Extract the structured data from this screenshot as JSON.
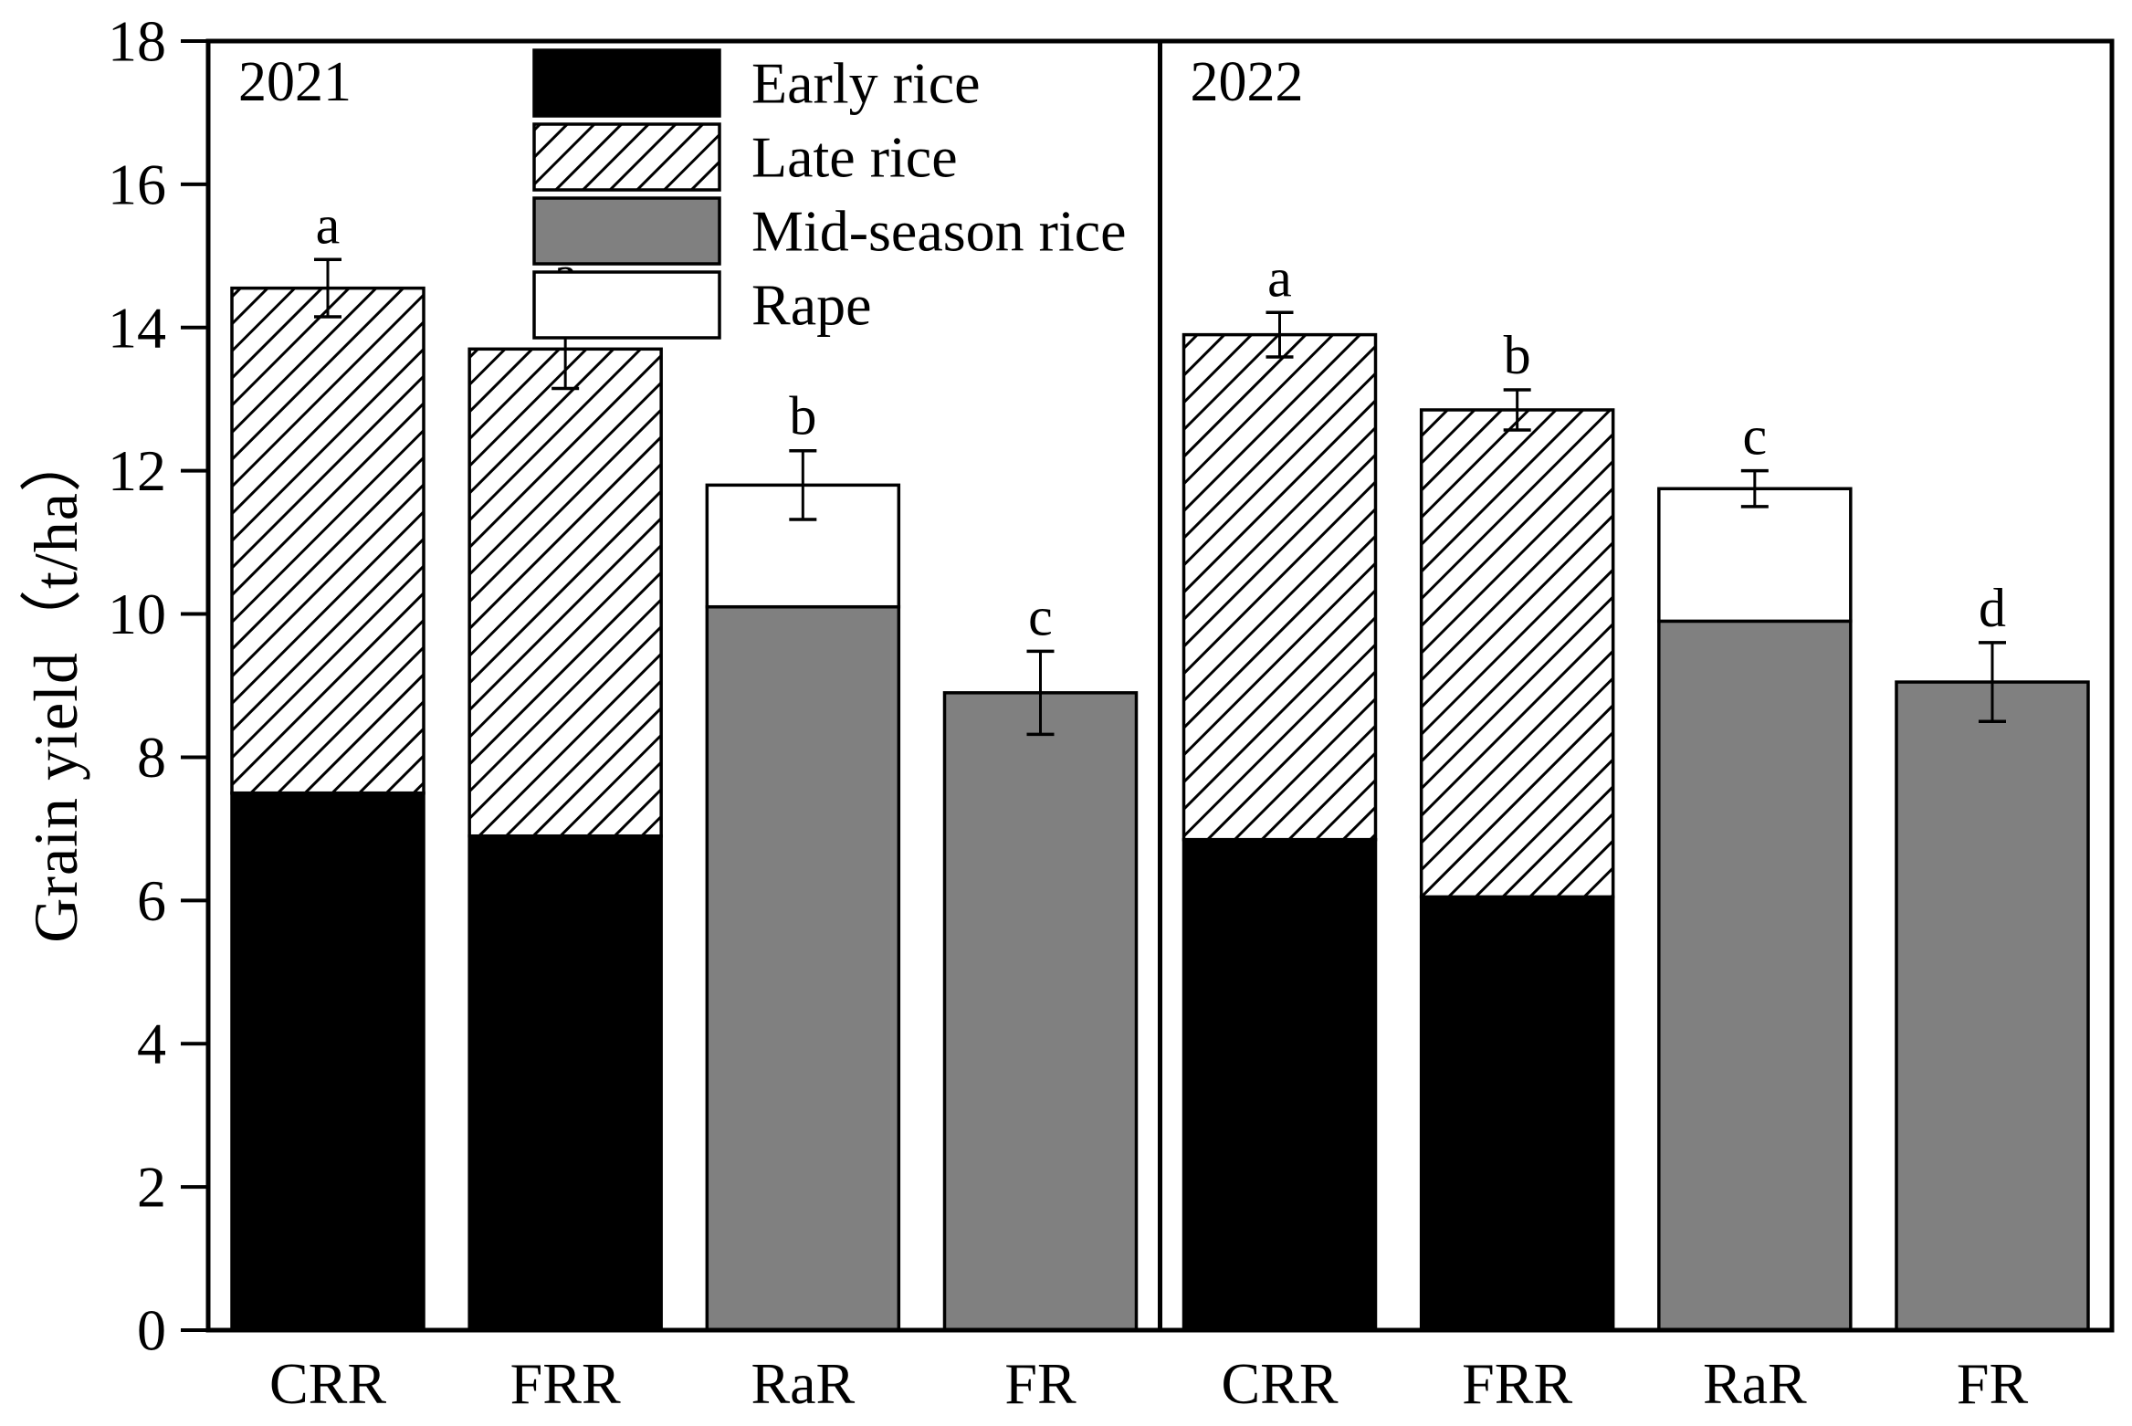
{
  "chart_data": {
    "type": "bar",
    "stacked": true,
    "title": "",
    "xlabel": "",
    "ylabel": "Grain yield（t/ha）",
    "ylim": [
      0,
      18
    ],
    "yticks": [
      0,
      2,
      4,
      6,
      8,
      10,
      12,
      14,
      16,
      18
    ],
    "grid": false,
    "legend_position": "top-center",
    "categories": [
      "CRR",
      "FRR",
      "RaR",
      "FR"
    ],
    "series_styles": [
      {
        "name": "Early rice",
        "fill": "black"
      },
      {
        "name": "Late rice",
        "fill": "hatch"
      },
      {
        "name": "Mid-season rice",
        "fill": "gray"
      },
      {
        "name": "Rape",
        "fill": "white"
      }
    ],
    "colors": {
      "black": "#000000",
      "gray": "#808080",
      "white": "#ffffff",
      "hatch_lines": "#000000",
      "axis": "#000000",
      "background": "#ffffff"
    },
    "panels": [
      {
        "year": "2021",
        "bars": [
          {
            "category": "CRR",
            "segments": [
              {
                "series": "Early rice",
                "value": 7.5
              },
              {
                "series": "Late rice",
                "value": 7.05
              }
            ],
            "total": 14.55,
            "error": 0.4,
            "letter": "a"
          },
          {
            "category": "FRR",
            "segments": [
              {
                "series": "Early rice",
                "value": 6.9
              },
              {
                "series": "Late rice",
                "value": 6.8
              }
            ],
            "total": 13.7,
            "error": 0.55,
            "letter": "a"
          },
          {
            "category": "RaR",
            "segments": [
              {
                "series": "Mid-season rice",
                "value": 10.1
              },
              {
                "series": "Rape",
                "value": 1.7
              }
            ],
            "total": 11.8,
            "error": 0.48,
            "letter": "b"
          },
          {
            "category": "FR",
            "segments": [
              {
                "series": "Mid-season rice",
                "value": 8.9
              }
            ],
            "total": 8.9,
            "error": 0.58,
            "letter": "c"
          }
        ]
      },
      {
        "year": "2022",
        "bars": [
          {
            "category": "CRR",
            "segments": [
              {
                "series": "Early rice",
                "value": 6.85
              },
              {
                "series": "Late rice",
                "value": 7.05
              }
            ],
            "total": 13.9,
            "error": 0.31,
            "letter": "a"
          },
          {
            "category": "FRR",
            "segments": [
              {
                "series": "Early rice",
                "value": 6.05
              },
              {
                "series": "Late rice",
                "value": 6.8
              }
            ],
            "total": 12.85,
            "error": 0.28,
            "letter": "b"
          },
          {
            "category": "RaR",
            "segments": [
              {
                "series": "Mid-season rice",
                "value": 9.9
              },
              {
                "series": "Rape",
                "value": 1.85
              }
            ],
            "total": 11.75,
            "error": 0.25,
            "letter": "c"
          },
          {
            "category": "FR",
            "segments": [
              {
                "series": "Mid-season rice",
                "value": 9.05
              }
            ],
            "total": 9.05,
            "error": 0.55,
            "letter": "d"
          }
        ]
      }
    ]
  }
}
